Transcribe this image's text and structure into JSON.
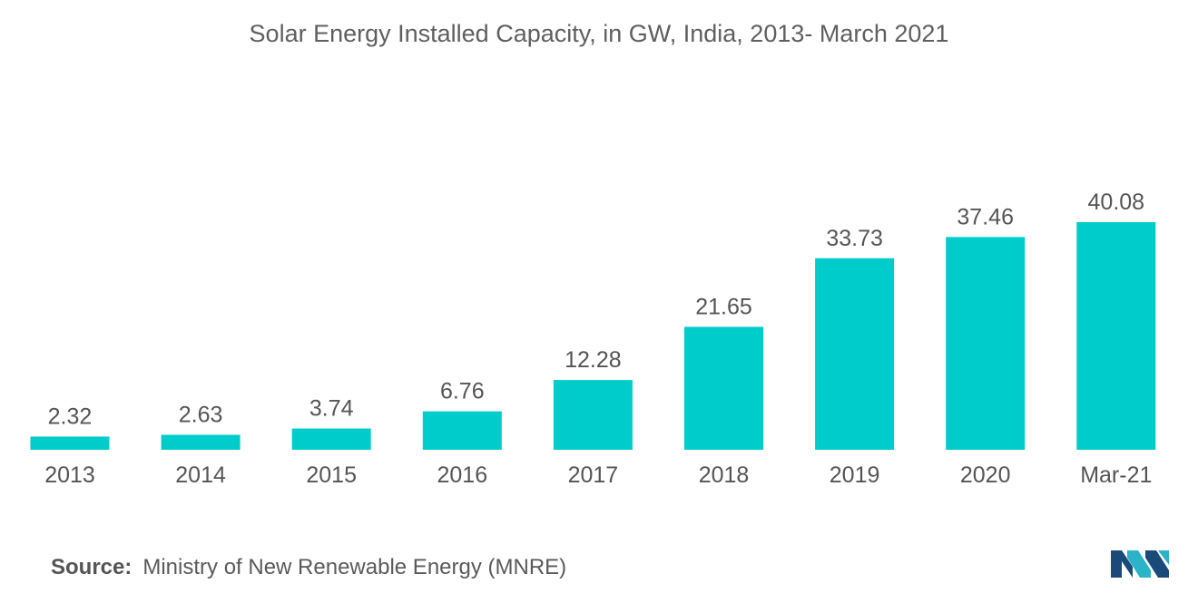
{
  "chart_data": {
    "type": "bar",
    "title": "Solar Energy Installed Capacity, in GW, India, 2013- March 2021",
    "categories": [
      "2013",
      "2014",
      "2015",
      "2016",
      "2017",
      "2018",
      "2019",
      "2020",
      "Mar-21"
    ],
    "values": [
      2.32,
      2.63,
      3.74,
      6.76,
      12.28,
      21.65,
      33.73,
      37.46,
      40.08
    ],
    "value_labels": [
      "2.32",
      "2.63",
      "3.74",
      "6.76",
      "12.28",
      "21.65",
      "33.73",
      "37.46",
      "40.08"
    ],
    "xlabel": "",
    "ylabel": "",
    "ylim": [
      0,
      40.08
    ],
    "grid": false,
    "bar_color": "#00cccc"
  },
  "source": {
    "label": "Source:",
    "text": "Ministry of New Renewable Energy (MNRE)"
  },
  "logo": {
    "icon": "mordor-intelligence-logo-icon",
    "colors": [
      "#1a4a7a",
      "#2bb3c9"
    ]
  }
}
